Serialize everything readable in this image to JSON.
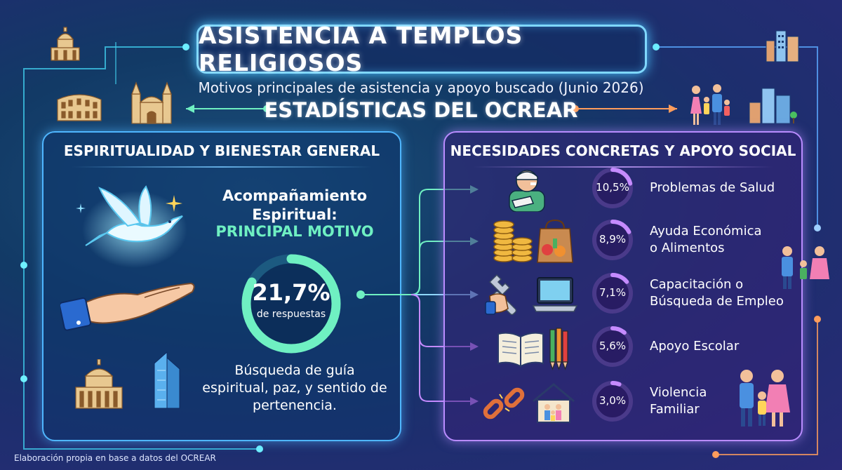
{
  "title": "ASISTENCIA A TEMPLOS RELIGIOSOS",
  "subtitle": "Motivos principales de asistencia y apoyo buscado (Junio 2026)",
  "source_title": "ESTADÍSTICAS DEL OCREAR",
  "left_panel": {
    "heading": "ESPIRITUALIDAD Y BIENESTAR GENERAL",
    "main_label": "Acompañamiento Espiritual:",
    "main_highlight": "PRINCIPAL MOTIVO",
    "main_value": "21,7%",
    "main_sub": "de respuestas",
    "main_desc": "Búsqueda de guía espiritual, paz, y sentido de pertenencia."
  },
  "right_panel": {
    "heading": "NECESIDADES CONCRETAS Y APOYO SOCIAL"
  },
  "chart_data": {
    "type": "table",
    "unit": "%",
    "categories": [
      "Acompañamiento Espiritual",
      "Problemas de Salud",
      "Ayuda Económica o Alimentos",
      "Capacitación o Búsqueda de Empleo",
      "Apoyo Escolar",
      "Violencia Familiar"
    ],
    "values": [
      21.7,
      10.5,
      8.9,
      7.1,
      5.6,
      3.0
    ],
    "items": [
      {
        "value": 10.5,
        "label_text": "10,5%",
        "line1": "Problemas de Salud",
        "line2": ""
      },
      {
        "value": 8.9,
        "label_text": "8,9%",
        "line1": "Ayuda Económica",
        "line2": "o Alimentos"
      },
      {
        "value": 7.1,
        "label_text": "7,1%",
        "line1": "Capacitación o",
        "line2": "Búsqueda de Empleo"
      },
      {
        "value": 5.6,
        "label_text": "5,6%",
        "line1": "Apoyo Escolar",
        "line2": ""
      },
      {
        "value": 3.0,
        "label_text": "3,0%",
        "line1": "Violencia",
        "line2": "Familiar"
      }
    ]
  },
  "footer": "Elaboración propia en base a datos del OCREAR",
  "colors": {
    "accent_cyan": "#4cc4ff",
    "accent_green": "#6ff0c2",
    "accent_purple": "#c58bff",
    "accent_orange": "#ff9d5c"
  },
  "icons": [
    "dove-icon",
    "hand-icon",
    "temple-icon",
    "skyscraper-icon",
    "bandaged-person-icon",
    "coins-icon",
    "grocery-bag-icon",
    "wrench-icon",
    "laptop-icon",
    "book-icon",
    "pencils-icon",
    "broken-chain-icon",
    "house-family-icon",
    "family-icon",
    "colosseum-icon",
    "cathedral-icon",
    "city-icon"
  ]
}
